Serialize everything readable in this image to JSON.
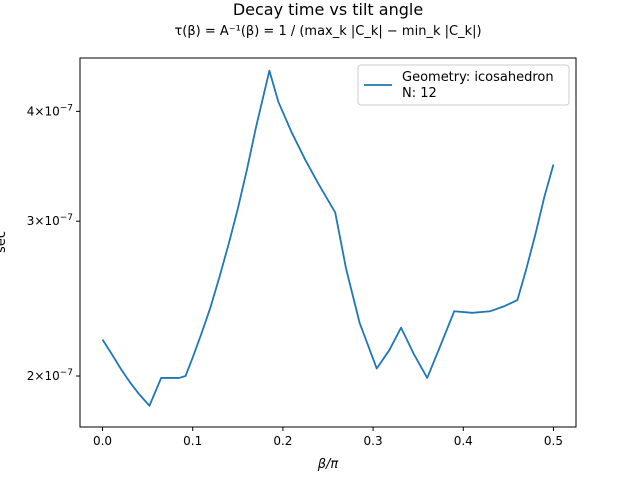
{
  "chart_data": {
    "type": "line",
    "title": "Decay time vs tilt angle",
    "subtitle": "τ(β) = A⁻¹(β) = 1 / (max_k |C_k| − min_k |C_k|)",
    "xlabel": "β/π",
    "ylabel": "sec",
    "yscale": "log",
    "xlim": [
      -0.025,
      0.525
    ],
    "ylim": [
      1.75e-07,
      4.6e-07
    ],
    "grid": false,
    "legend_position": "top-right",
    "x_ticks": [
      {
        "value": 0.0,
        "label": "0.0"
      },
      {
        "value": 0.1,
        "label": "0.1"
      },
      {
        "value": 0.2,
        "label": "0.2"
      },
      {
        "value": 0.3,
        "label": "0.3"
      },
      {
        "value": 0.4,
        "label": "0.4"
      },
      {
        "value": 0.5,
        "label": "0.5"
      }
    ],
    "y_ticks": [
      {
        "value": 2e-07,
        "mant": "2",
        "exp": "−7"
      },
      {
        "value": 3e-07,
        "mant": "3",
        "exp": "−7"
      },
      {
        "value": 4e-07,
        "mant": "4",
        "exp": "−7"
      }
    ],
    "series": [
      {
        "name": "Geometry: icosahedron",
        "name_line2": "N: 12",
        "color": "#1f77b4",
        "x": [
          0.0,
          0.01,
          0.02,
          0.03,
          0.04,
          0.052,
          0.065,
          0.075,
          0.085,
          0.092,
          0.1,
          0.11,
          0.12,
          0.13,
          0.14,
          0.15,
          0.16,
          0.17,
          0.185,
          0.195,
          0.21,
          0.225,
          0.24,
          0.258,
          0.27,
          0.285,
          0.304,
          0.318,
          0.331,
          0.345,
          0.36,
          0.375,
          0.39,
          0.41,
          0.43,
          0.445,
          0.46,
          0.47,
          0.48,
          0.49,
          0.5
        ],
        "y": [
          2.2e-07,
          2.12e-07,
          2.04e-07,
          1.97e-07,
          1.91e-07,
          1.85e-07,
          1.99e-07,
          1.99e-07,
          1.99e-07,
          2e-07,
          2.1e-07,
          2.24e-07,
          2.4e-07,
          2.6e-07,
          2.83e-07,
          3.1e-07,
          3.43e-07,
          3.83e-07,
          4.45e-07,
          4.1e-07,
          3.78e-07,
          3.52e-07,
          3.3e-07,
          3.07e-07,
          2.65e-07,
          2.3e-07,
          2.04e-07,
          2.14e-07,
          2.27e-07,
          2.12e-07,
          1.99e-07,
          2.17e-07,
          2.37e-07,
          2.36e-07,
          2.37e-07,
          2.4e-07,
          2.44e-07,
          2.65e-07,
          2.9e-07,
          3.2e-07,
          3.48e-07
        ]
      }
    ]
  }
}
